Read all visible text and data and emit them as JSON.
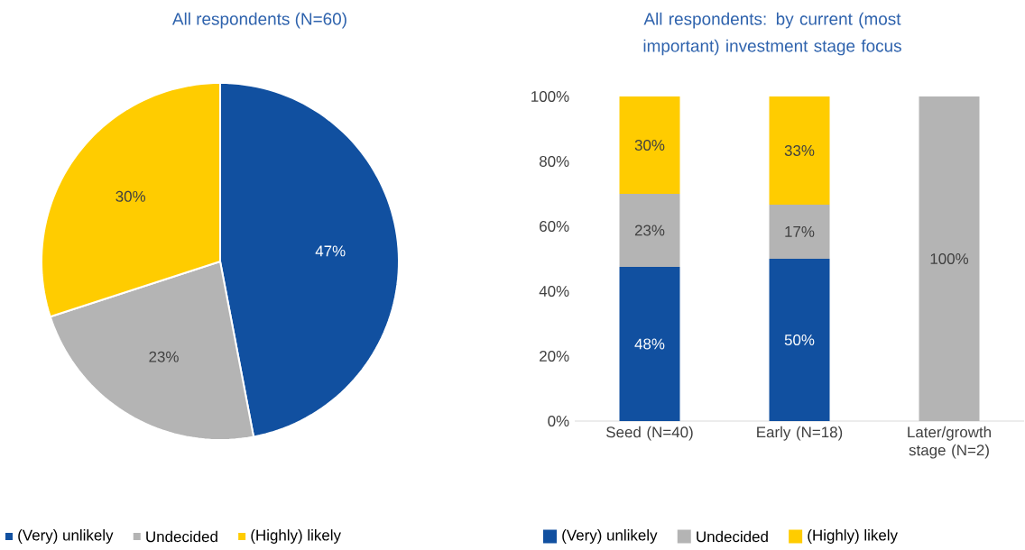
{
  "chart_data": [
    {
      "type": "pie",
      "title": "All respondents (N=60)",
      "categories": [
        "(Very) unlikely",
        "Undecided",
        "(Highly) likely"
      ],
      "values": [
        47,
        23,
        30
      ],
      "colors": [
        "#1150a0",
        "#b4b4b4",
        "#ffcc00"
      ],
      "value_labels": [
        "47%",
        "23%",
        "30%"
      ],
      "legend": "bottom"
    },
    {
      "type": "bar",
      "stacked": true,
      "title": "All respondents: by current (most important) investment stage focus",
      "categories": [
        "Seed (N=40)",
        "Early (N=18)",
        "Later/growth stage (N=2)"
      ],
      "series": [
        {
          "name": "(Very) unlikely",
          "color": "#1150a0",
          "values": [
            47.5,
            50,
            0
          ],
          "value_labels": [
            "48%",
            "50%",
            null
          ]
        },
        {
          "name": "Undecided",
          "color": "#b4b4b4",
          "values": [
            22.5,
            16.7,
            100
          ],
          "value_labels": [
            "23%",
            "17%",
            "100%"
          ]
        },
        {
          "name": "(Highly) likely",
          "color": "#ffcc00",
          "values": [
            30,
            33.3,
            0
          ],
          "value_labels": [
            "30%",
            "33%",
            null
          ]
        }
      ],
      "ylim": [
        0,
        100
      ],
      "yticks": [
        {
          "value": 0,
          "label": "0%"
        },
        {
          "value": 20,
          "label": "20%"
        },
        {
          "value": 40,
          "label": "40%"
        },
        {
          "value": 60,
          "label": "60%"
        },
        {
          "value": 80,
          "label": "80%"
        },
        {
          "value": 100,
          "label": "100%"
        }
      ],
      "legend": "bottom"
    }
  ]
}
